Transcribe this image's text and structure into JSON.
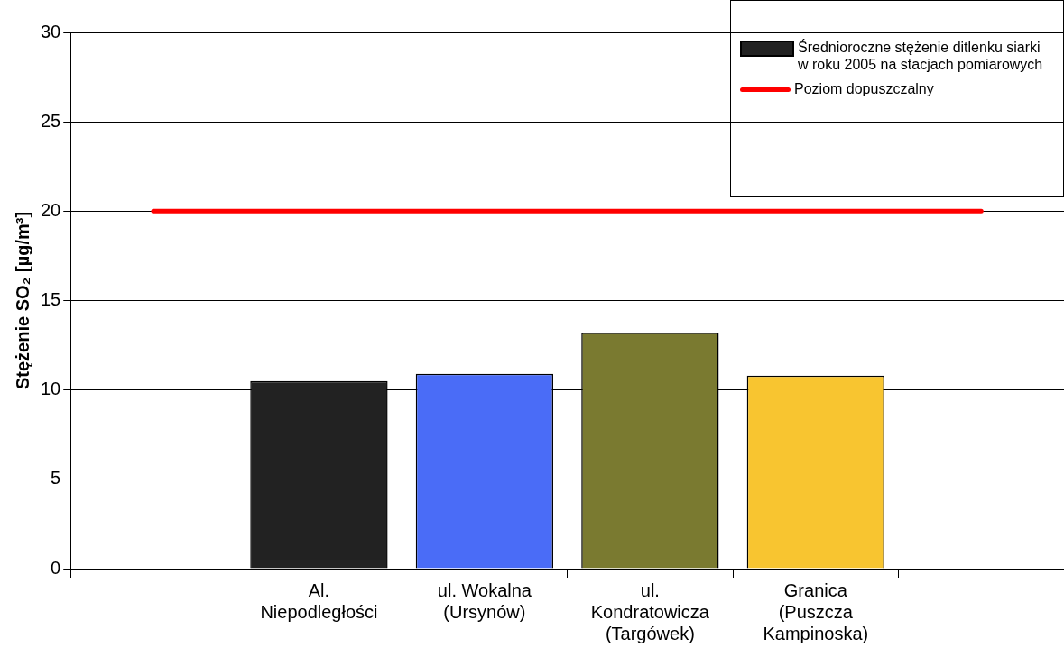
{
  "chart_data": {
    "type": "bar",
    "ylabel": "Stężenie SO₂ [µg/m³]",
    "categories": [
      null,
      "Al. Niepodległości",
      "ul. Wokalna (Ursynów)",
      "ul. Kondratowicza (Targówek)",
      "Granica (Puszcza Kampinoska)",
      null
    ],
    "series": [
      {
        "name": "Średnioroczne stężenie ditlenku siarki w roku 2005 na stacjach pomiarowych",
        "colors": [
          "#000000",
          "#222222",
          "#4a6cf7",
          "#7a7a30",
          "#f8c530",
          "#000000"
        ],
        "values": [
          null,
          10.5,
          10.9,
          13.2,
          10.8,
          null
        ]
      },
      {
        "name": "Poziom dopuszczalny",
        "type": "line",
        "color": "#ff0000",
        "values": [
          20,
          20,
          20,
          20,
          20,
          20
        ]
      }
    ],
    "ylim": [
      0,
      30
    ],
    "yticks": [
      0,
      5,
      10,
      15,
      20,
      25,
      30
    ],
    "grid": "y",
    "legend": "top right",
    "marker": "none"
  }
}
